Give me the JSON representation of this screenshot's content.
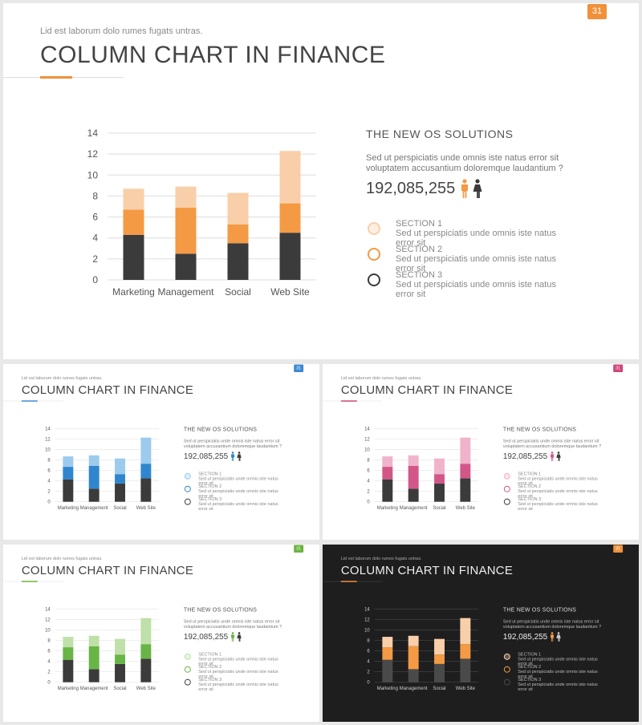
{
  "page_number": "31",
  "subtitle": "Lid est laborum dolo rumes fugats untras.",
  "title": "COLUMN CHART IN FINANCE",
  "panel": {
    "heading": "THE NEW OS SOLUTIONS",
    "text": "Sed ut perspiciatis unde omnis iste natus error sit voluptatem accusantium doloremque laudantium ?",
    "figure": "192,085,255",
    "male_icon": "male-person-icon",
    "female_icon": "female-person-icon",
    "sections": [
      {
        "label": "SECTION 1",
        "text": "Sed ut perspiciatis unde omnis iste natus error sit"
      },
      {
        "label": "SECTION 2",
        "text": "Sed ut perspiciatis unde omnis iste natus error sit"
      },
      {
        "label": "SECTION 3",
        "text": "Sed ut perspiciatis unde omnis iste natus error sit"
      }
    ]
  },
  "chart_data": {
    "type": "bar",
    "stacked": true,
    "categories": [
      "Marketing",
      "Management",
      "Social",
      "Web Site"
    ],
    "series": [
      {
        "values": [
          4.3,
          2.5,
          3.5,
          4.5
        ]
      },
      {
        "values": [
          2.4,
          4.4,
          1.8,
          2.8
        ]
      },
      {
        "values": [
          2.0,
          2.0,
          3.0,
          5.0
        ]
      }
    ],
    "ylim": [
      0,
      14
    ],
    "yticks": [
      0,
      2,
      4,
      6,
      8,
      10,
      12,
      14
    ],
    "grid": true
  },
  "variants": [
    {
      "theme": "light",
      "accent": "#f0913a",
      "mid": "#f49a44",
      "light": "#f9cfa9",
      "base": "#3b3b3b"
    },
    {
      "theme": "light",
      "accent": "#3d8ad2",
      "mid": "#2f86cf",
      "light": "#9ccbee",
      "base": "#3b3b3b"
    },
    {
      "theme": "light",
      "accent": "#d0457a",
      "mid": "#d25788",
      "light": "#f0b3cb",
      "base": "#3b3b3b"
    },
    {
      "theme": "light",
      "accent": "#6cb33f",
      "mid": "#69b446",
      "light": "#bfe0a8",
      "base": "#3b3b3b"
    },
    {
      "theme": "dark",
      "accent": "#f0913a",
      "mid": "#f49a44",
      "light": "#f9cfa9",
      "base": "#4a4a4a"
    }
  ]
}
